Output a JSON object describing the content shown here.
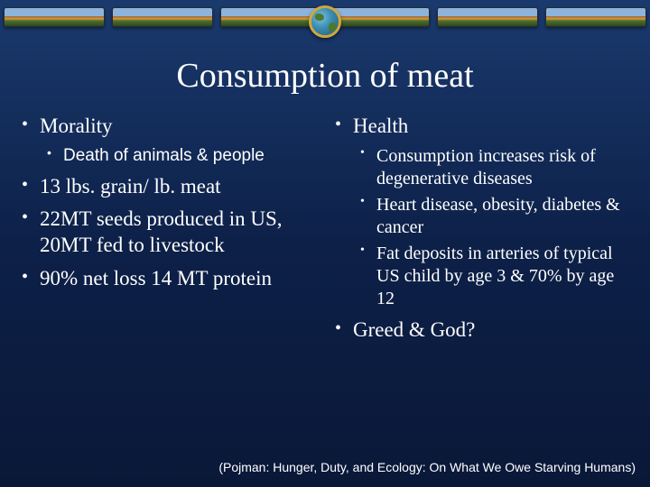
{
  "slide": {
    "title": "Consumption of meat",
    "background_gradient": [
      "#1a3a6e",
      "#0d2048",
      "#0a1838"
    ],
    "title_fontsize": 38,
    "title_color": "#ffffff",
    "body_color": "#ffffff",
    "top_bullet_fontsize": 23,
    "sub_bullet_fontsize": 19,
    "header": {
      "strip_colors": {
        "sky": "#8db4dd",
        "sand": "#d89838",
        "grass_light": "#4e6e2f",
        "grass_dark": "#2d4a1c",
        "border": "#2a2a2a"
      },
      "globe": {
        "ring_color": "#d0a838",
        "ocean": "#3d8fb5",
        "land": "#4a7a2a"
      }
    },
    "left": {
      "items": [
        {
          "label": "Morality",
          "sub": [
            "Death of animals & people"
          ]
        },
        {
          "label": "13 lbs. grain/ lb. meat"
        },
        {
          "label": "22MT seeds produced in US, 20MT fed to livestock"
        },
        {
          "label": "90% net loss 14 MT protein"
        }
      ]
    },
    "right": {
      "items": [
        {
          "label": "Health",
          "sub": [
            "Consumption increases risk of degenerative diseases",
            "Heart disease, obesity, diabetes & cancer",
            "Fat deposits in arteries of typical US child by age 3 & 70% by age 12"
          ]
        },
        {
          "label": "Greed & God?"
        }
      ]
    },
    "footer": "(Pojman: Hunger, Duty, and Ecology: On What We Owe Starving Humans)"
  }
}
